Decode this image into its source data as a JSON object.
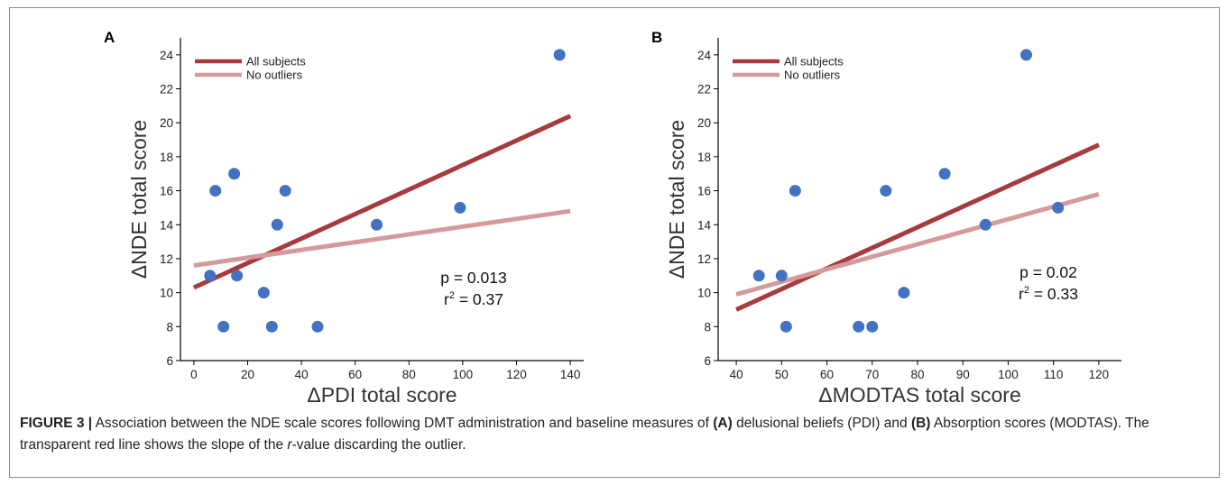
{
  "caption": {
    "label": "FIGURE 3 |",
    "t1": " Association between the NDE scale scores following DMT administration and baseline measures of ",
    "b1": "(A)",
    "t2": " delusional beliefs (PDI) and ",
    "b2": "(B)",
    "t3": " Absorption scores (MODTAS). The transparent red line shows the slope of the ",
    "r": "r",
    "t4": "-value discarding the outlier."
  },
  "colors": {
    "all_subjects": "#a63a3f",
    "no_outliers": "#d49a9c",
    "points": "#4272c1"
  },
  "chart_data": [
    {
      "type": "scatter",
      "panel_label": "A",
      "xlabel": "ΔPDI total score",
      "ylabel": "ΔNDE total score",
      "xlim": [
        -5,
        145
      ],
      "ylim": [
        6,
        25
      ],
      "xticks": [
        0,
        20,
        40,
        60,
        80,
        100,
        120,
        140
      ],
      "yticks": [
        6,
        8,
        10,
        12,
        14,
        16,
        18,
        20,
        22,
        24
      ],
      "grid": false,
      "legend_position": "top-left",
      "points": [
        [
          6,
          11
        ],
        [
          8,
          16
        ],
        [
          11,
          8
        ],
        [
          15,
          17
        ],
        [
          16,
          11
        ],
        [
          26,
          10
        ],
        [
          29,
          8
        ],
        [
          31,
          14
        ],
        [
          34,
          16
        ],
        [
          46,
          8
        ],
        [
          68,
          14
        ],
        [
          99,
          15
        ],
        [
          136,
          24
        ]
      ],
      "lines": [
        {
          "name": "All subjects",
          "x": [
            0,
            140
          ],
          "y": [
            10.3,
            20.4
          ]
        },
        {
          "name": "No outliers",
          "x": [
            0,
            140
          ],
          "y": [
            11.6,
            14.8
          ]
        }
      ],
      "annotation": {
        "p": "p  = 0.013",
        "r2_prefix": "r",
        "r2_sup": "2",
        "r2_value": " = 0.37"
      }
    },
    {
      "type": "scatter",
      "panel_label": "B",
      "xlabel": "ΔMODTAS total score",
      "ylabel": "ΔNDE total score",
      "xlim": [
        36,
        125
      ],
      "ylim": [
        6,
        25
      ],
      "xticks": [
        40,
        50,
        60,
        70,
        80,
        90,
        100,
        110,
        120
      ],
      "yticks": [
        6,
        8,
        10,
        12,
        14,
        16,
        18,
        20,
        22,
        24
      ],
      "grid": false,
      "legend_position": "top-left",
      "points": [
        [
          45,
          11
        ],
        [
          50,
          11
        ],
        [
          51,
          8
        ],
        [
          53,
          16
        ],
        [
          67,
          8
        ],
        [
          70,
          8
        ],
        [
          73,
          16
        ],
        [
          77,
          10
        ],
        [
          86,
          17
        ],
        [
          95,
          14
        ],
        [
          104,
          24
        ],
        [
          111,
          15
        ]
      ],
      "lines": [
        {
          "name": "All subjects",
          "x": [
            40,
            120
          ],
          "y": [
            9.0,
            18.7
          ]
        },
        {
          "name": "No outliers",
          "x": [
            40,
            120
          ],
          "y": [
            9.9,
            15.8
          ]
        }
      ],
      "annotation": {
        "p": "p  = 0.02",
        "r2_prefix": "r",
        "r2_sup": "2",
        "r2_value": " = 0.33"
      }
    }
  ]
}
